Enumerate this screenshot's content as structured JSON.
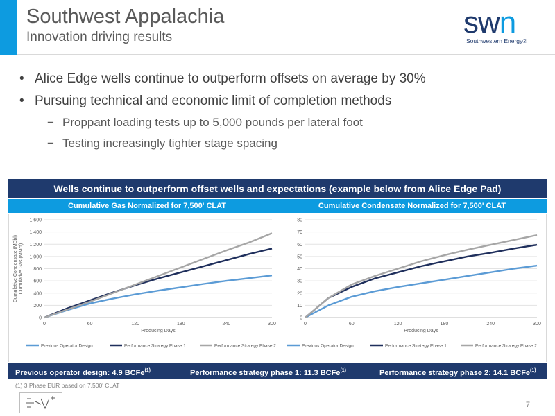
{
  "colors": {
    "accent": "#0d9be0",
    "navy": "#1f3a6d",
    "series_prev": "#5b9bd5",
    "series_p1": "#1f2f5c",
    "series_p2": "#a6a6a6"
  },
  "header": {
    "title": "Southwest Appalachia",
    "subtitle": "Innovation driving results"
  },
  "logo": {
    "wordmark_left": "sw",
    "wordmark_right": "n",
    "tagline": "Southwestern Energy®"
  },
  "bullets": [
    {
      "level": 1,
      "text": "Alice Edge wells continue to outperform offsets on average by 30%"
    },
    {
      "level": 1,
      "text": "Pursuing technical and economic limit of completion methods"
    },
    {
      "level": 2,
      "text": "Proppant loading tests up to 5,000 pounds per lateral foot"
    },
    {
      "level": 2,
      "text": "Testing increasingly tighter stage spacing"
    }
  ],
  "bullet_marks": {
    "level1": "•",
    "level2": "−"
  },
  "banner": "Wells continue to outperform offset wells and expectations (example below from Alice Edge Pad)",
  "chart_data": [
    {
      "type": "line",
      "title": "Cumulative Gas Normalized for 7,500' CLAT",
      "xlabel": "Producing Days",
      "ylabel": "Cumulative Gas (MMcf)",
      "xlim": [
        0,
        300
      ],
      "ylim": [
        0,
        1600
      ],
      "xticks": [
        0,
        60,
        120,
        180,
        240,
        300
      ],
      "yticks": [
        0,
        200,
        400,
        600,
        800,
        1000,
        1200,
        1400,
        1600
      ],
      "ytick_labels": [
        "0",
        "200",
        "400",
        "600",
        "800",
        "1,000",
        "1,200",
        "1,400",
        "1,600"
      ],
      "grid": true,
      "legend": "bottom",
      "x": [
        0,
        30,
        60,
        90,
        120,
        150,
        180,
        210,
        240,
        270,
        300
      ],
      "series": [
        {
          "name": "Previous Operator Design",
          "color": "#5b9bd5",
          "values": [
            0,
            120,
            230,
            310,
            380,
            440,
            495,
            550,
            600,
            645,
            690
          ]
        },
        {
          "name": "Performance Strategy Phase 1",
          "color": "#1f2f5c",
          "values": [
            0,
            150,
            280,
            410,
            530,
            640,
            740,
            840,
            940,
            1040,
            1130
          ]
        },
        {
          "name": "Performance Strategy Phase 2",
          "color": "#a6a6a6",
          "values": [
            0,
            130,
            260,
            400,
            540,
            680,
            820,
            960,
            1100,
            1230,
            1380
          ]
        }
      ]
    },
    {
      "type": "line",
      "title": "Cumulative Condensate Normalized for 7,500' CLAT",
      "xlabel": "Producing Days",
      "ylabel": "Cumulative Condensate (MBbl)",
      "xlim": [
        0,
        300
      ],
      "ylim": [
        0,
        80
      ],
      "xticks": [
        0,
        60,
        120,
        180,
        240,
        300
      ],
      "yticks": [
        0,
        10,
        20,
        30,
        40,
        50,
        60,
        70,
        80
      ],
      "ytick_labels": [
        "0",
        "10",
        "20",
        "30",
        "40",
        "50",
        "60",
        "70",
        "80"
      ],
      "grid": true,
      "legend": "bottom",
      "x": [
        0,
        30,
        60,
        90,
        120,
        150,
        180,
        210,
        240,
        270,
        300
      ],
      "series": [
        {
          "name": "Previous Operator Design",
          "color": "#5b9bd5",
          "values": [
            0,
            10,
            17,
            21.5,
            25,
            28,
            31,
            34,
            37,
            40,
            42.5
          ]
        },
        {
          "name": "Performance Strategy Phase 1",
          "color": "#1f2f5c",
          "values": [
            0,
            16,
            25,
            32,
            37,
            42,
            46,
            50,
            53,
            56.5,
            59.5
          ]
        },
        {
          "name": "Performance Strategy Phase 2",
          "color": "#a6a6a6",
          "values": [
            0,
            16,
            27,
            34,
            40,
            46,
            51,
            55.5,
            59.5,
            63.5,
            67.5
          ]
        }
      ]
    }
  ],
  "summary": [
    {
      "label": "Previous operator design:  4.9 BCFe",
      "note": "(1)"
    },
    {
      "label": "Performance strategy phase 1:  11.3 BCFe",
      "note": "(1)"
    },
    {
      "label": "Performance strategy phase 2:  14.1 BCFe",
      "note": "(1)"
    }
  ],
  "footnote": "(1) 3 Phase EUR based on 7,500' CLAT",
  "page_number": "7"
}
